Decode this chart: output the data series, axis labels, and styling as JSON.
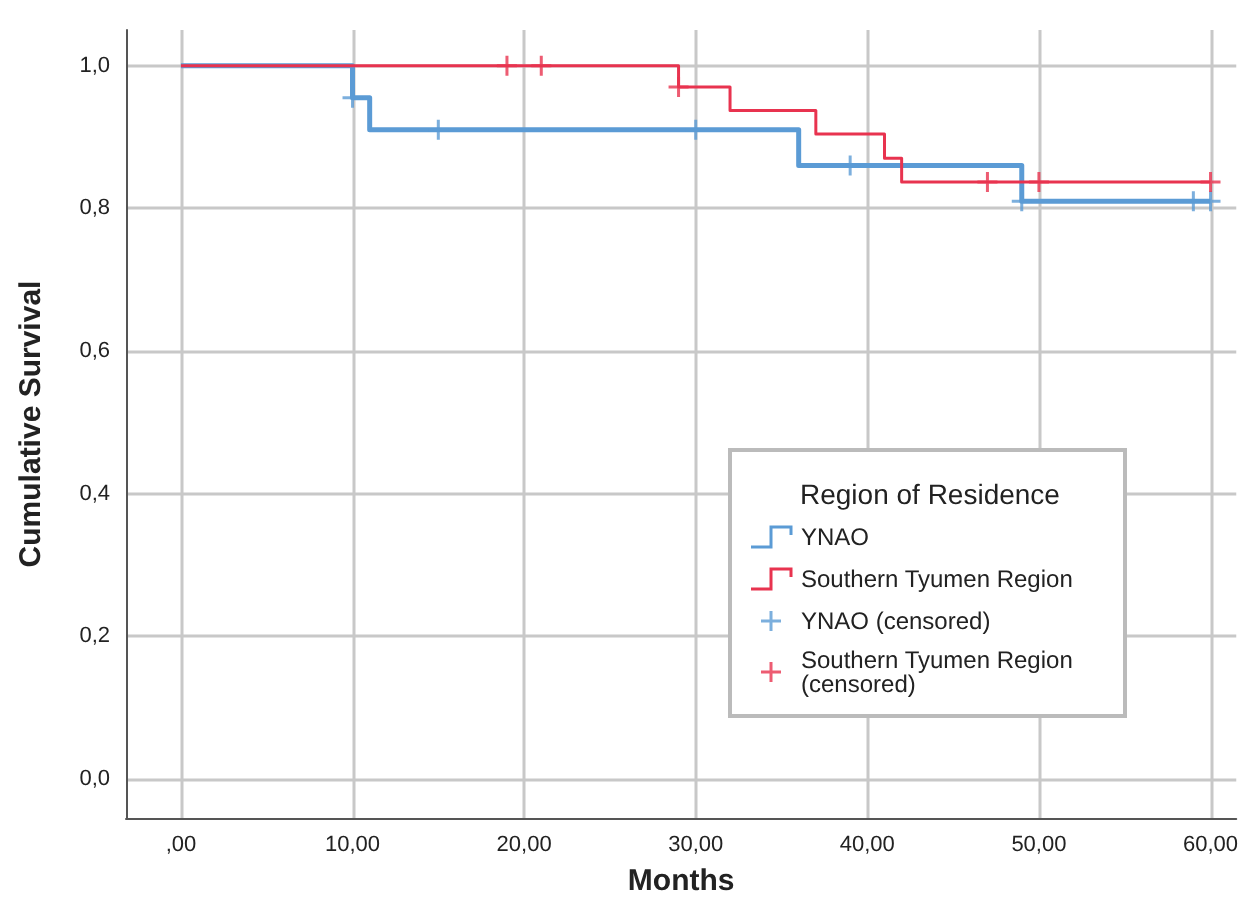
{
  "chart_data": {
    "type": "step",
    "xlabel": "Months",
    "ylabel": "Cumulative Survival",
    "legend_title": "Region of Residence",
    "legend": "right",
    "grid": true,
    "xlim": [
      -3.2,
      61.5
    ],
    "ylim": [
      -0.055,
      1.05
    ],
    "xticks": [
      {
        "value": 0,
        "label": ",00"
      },
      {
        "value": 10,
        "label": "10,00"
      },
      {
        "value": 20,
        "label": "20,00"
      },
      {
        "value": 30,
        "label": "30,00"
      },
      {
        "value": 40,
        "label": "40,00"
      },
      {
        "value": 50,
        "label": "50,00"
      },
      {
        "value": 60,
        "label": "60,00"
      }
    ],
    "yticks": [
      {
        "value": 0,
        "label": "0,0"
      },
      {
        "value": 0.2,
        "label": "0,2"
      },
      {
        "value": 0.4,
        "label": "0,4"
      },
      {
        "value": 0.6,
        "label": "0,6"
      },
      {
        "value": 0.8,
        "label": "0,8"
      },
      {
        "value": 1,
        "label": "1,0"
      }
    ],
    "series": [
      {
        "name": "YNAO",
        "color": "#5b9bd5",
        "x": [
          0,
          10,
          11,
          36,
          49,
          60
        ],
        "values": [
          1,
          0.955,
          0.91,
          0.86,
          0.81,
          0.81
        ]
      },
      {
        "name": "Southern Tyumen Region",
        "color": "#e8334f",
        "x": [
          0,
          29,
          32,
          37,
          41,
          42,
          60
        ],
        "values": [
          1,
          0.97,
          0.937,
          0.904,
          0.87,
          0.837,
          0.837
        ]
      },
      {
        "name": "YNAO (censored)",
        "type": "scatter",
        "marker": "cross",
        "color": "#5b9bd5",
        "x": [
          10,
          15,
          30,
          39,
          49,
          59,
          60
        ],
        "values": [
          0.955,
          0.91,
          0.91,
          0.86,
          0.81,
          0.81,
          0.81
        ]
      },
      {
        "name": "Southern Tyumen Region (censored)",
        "type": "scatter",
        "marker": "cross",
        "color": "#e8334f",
        "x": [
          19,
          21,
          29,
          47,
          50,
          60
        ],
        "values": [
          1,
          1,
          0.97,
          0.837,
          0.837,
          0.837
        ]
      }
    ]
  }
}
